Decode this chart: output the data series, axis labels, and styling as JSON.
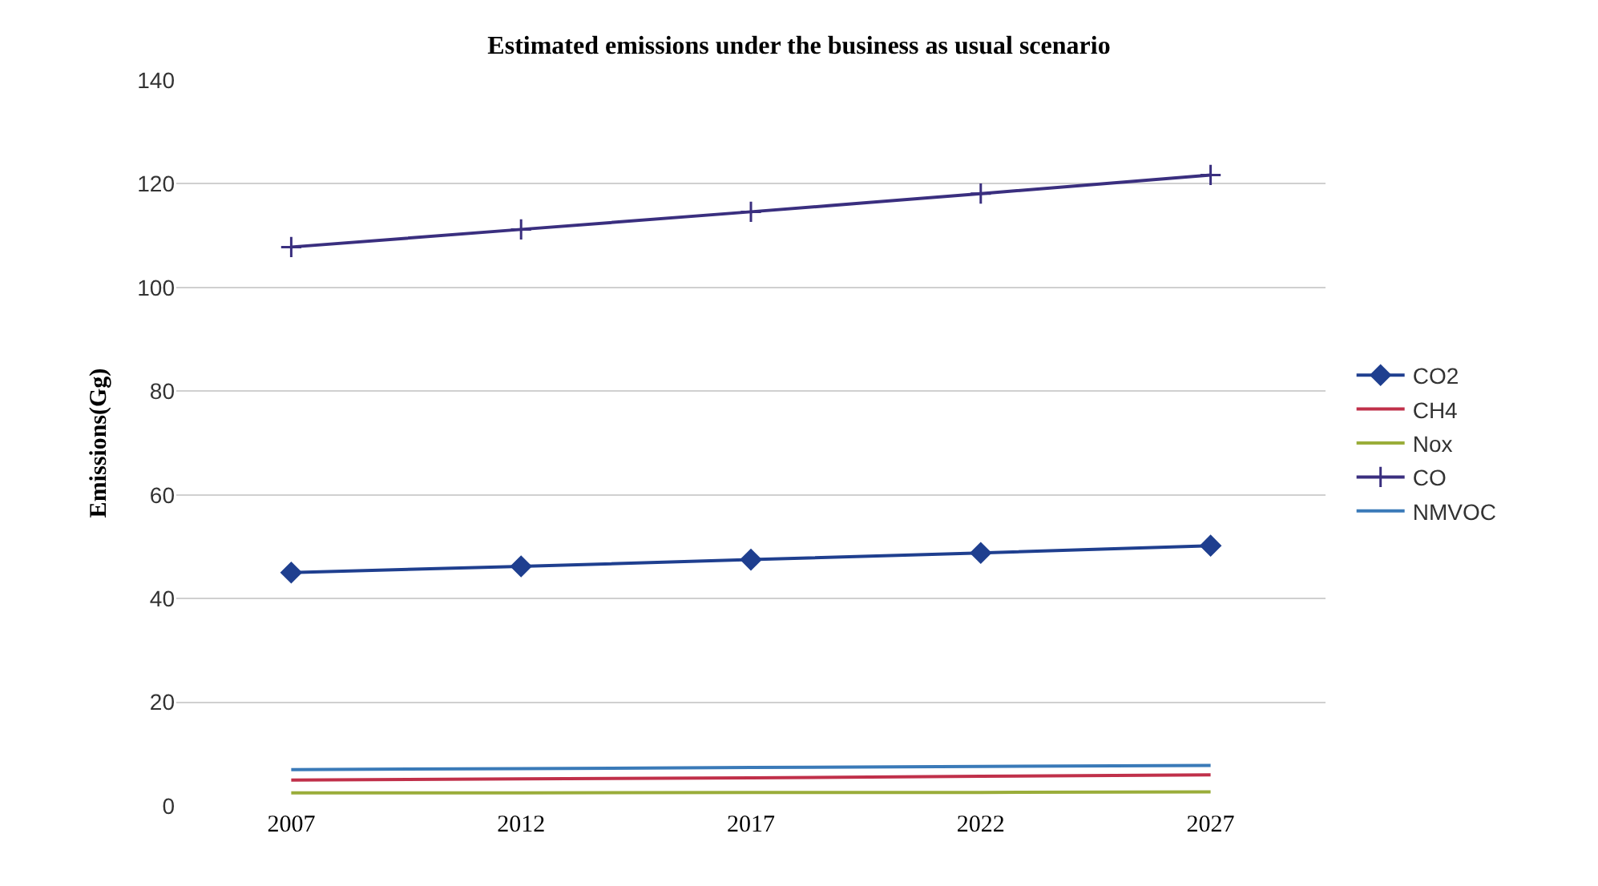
{
  "chart_data": {
    "type": "line",
    "title": "Estimated emissions under the business as usual scenario",
    "ylabel": "Emissions(Gg)",
    "categories": [
      "2007",
      "2012",
      "2017",
      "2022",
      "2027"
    ],
    "series": [
      {
        "name": "CO2",
        "color": "#1f3f8f",
        "marker": "diamond",
        "values": [
          45,
          46.2,
          47.5,
          48.8,
          50.2
        ]
      },
      {
        "name": "CH4",
        "color": "#c0304a",
        "marker": "none",
        "values": [
          5,
          5.2,
          5.4,
          5.7,
          6
        ]
      },
      {
        "name": "Nox",
        "color": "#9aad3a",
        "marker": "none",
        "values": [
          2.5,
          2.5,
          2.6,
          2.6,
          2.7
        ]
      },
      {
        "name": "CO",
        "color": "#3a2f7f",
        "marker": "cross",
        "values": [
          107.8,
          111.2,
          114.6,
          118.1,
          121.7
        ]
      },
      {
        "name": "NMVOC",
        "color": "#3a7ab8",
        "marker": "none",
        "values": [
          7,
          7.2,
          7.4,
          7.6,
          7.8
        ]
      }
    ],
    "ylim": [
      0,
      140
    ],
    "yticks": [
      0,
      20,
      40,
      60,
      80,
      100,
      120,
      140
    ],
    "grid": "y",
    "legend": "right",
    "line_style": "solid"
  }
}
